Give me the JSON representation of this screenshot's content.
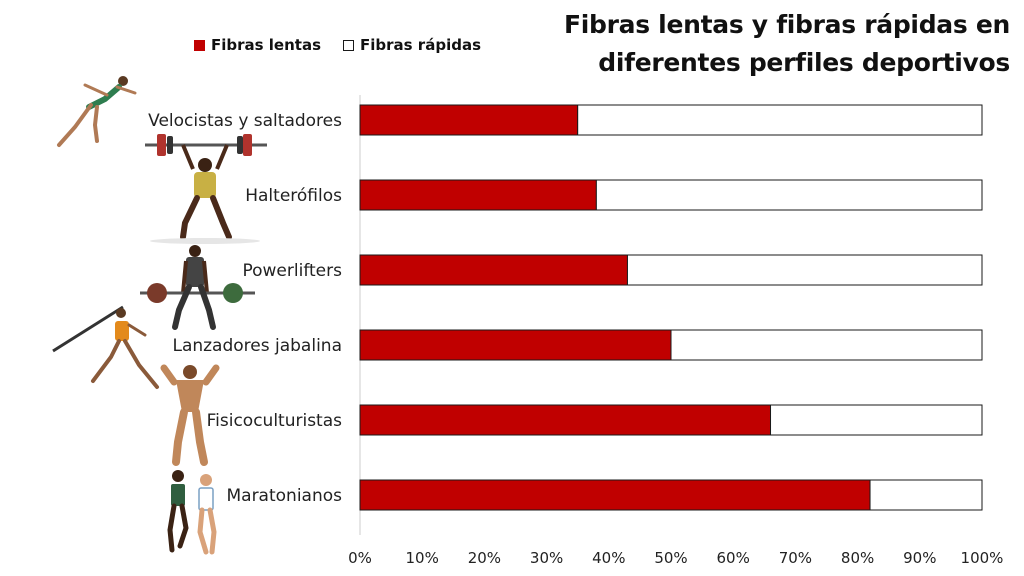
{
  "title": "Fibras lentas y fibras rápidas en diferentes perfiles deportivos",
  "colors": {
    "slow": "#c00000",
    "fast": "#ffffff",
    "border": "#1a1a1a",
    "axis": "#cccccc"
  },
  "chart_data": {
    "type": "bar",
    "orientation": "horizontal",
    "stacked": "percent",
    "title": "Fibras lentas y fibras rápidas en diferentes perfiles deportivos",
    "legend_position": "top-left",
    "categories": [
      "Velocistas y saltadores",
      "Halterófilos",
      "Powerlifters",
      "Lanzadores jabalina",
      "Fisicoculturistas",
      "Maratonianos"
    ],
    "series": [
      {
        "name": "Fibras lentas",
        "color": "#c00000",
        "values": [
          35,
          38,
          43,
          50,
          66,
          82
        ]
      },
      {
        "name": "Fibras rápidas",
        "color": "#ffffff",
        "values": [
          65,
          62,
          57,
          50,
          34,
          18
        ]
      }
    ],
    "xlim": [
      0,
      100
    ],
    "x_ticks": [
      "0%",
      "10%",
      "20%",
      "30%",
      "40%",
      "50%",
      "60%",
      "70%",
      "80%",
      "90%",
      "100%"
    ],
    "grid": false
  },
  "athlete_icons": [
    "sprinter-icon",
    "weightlifter-icon",
    "powerlifter-icon",
    "javelin-thrower-icon",
    "bodybuilder-icon",
    "marathon-runners-icon"
  ]
}
